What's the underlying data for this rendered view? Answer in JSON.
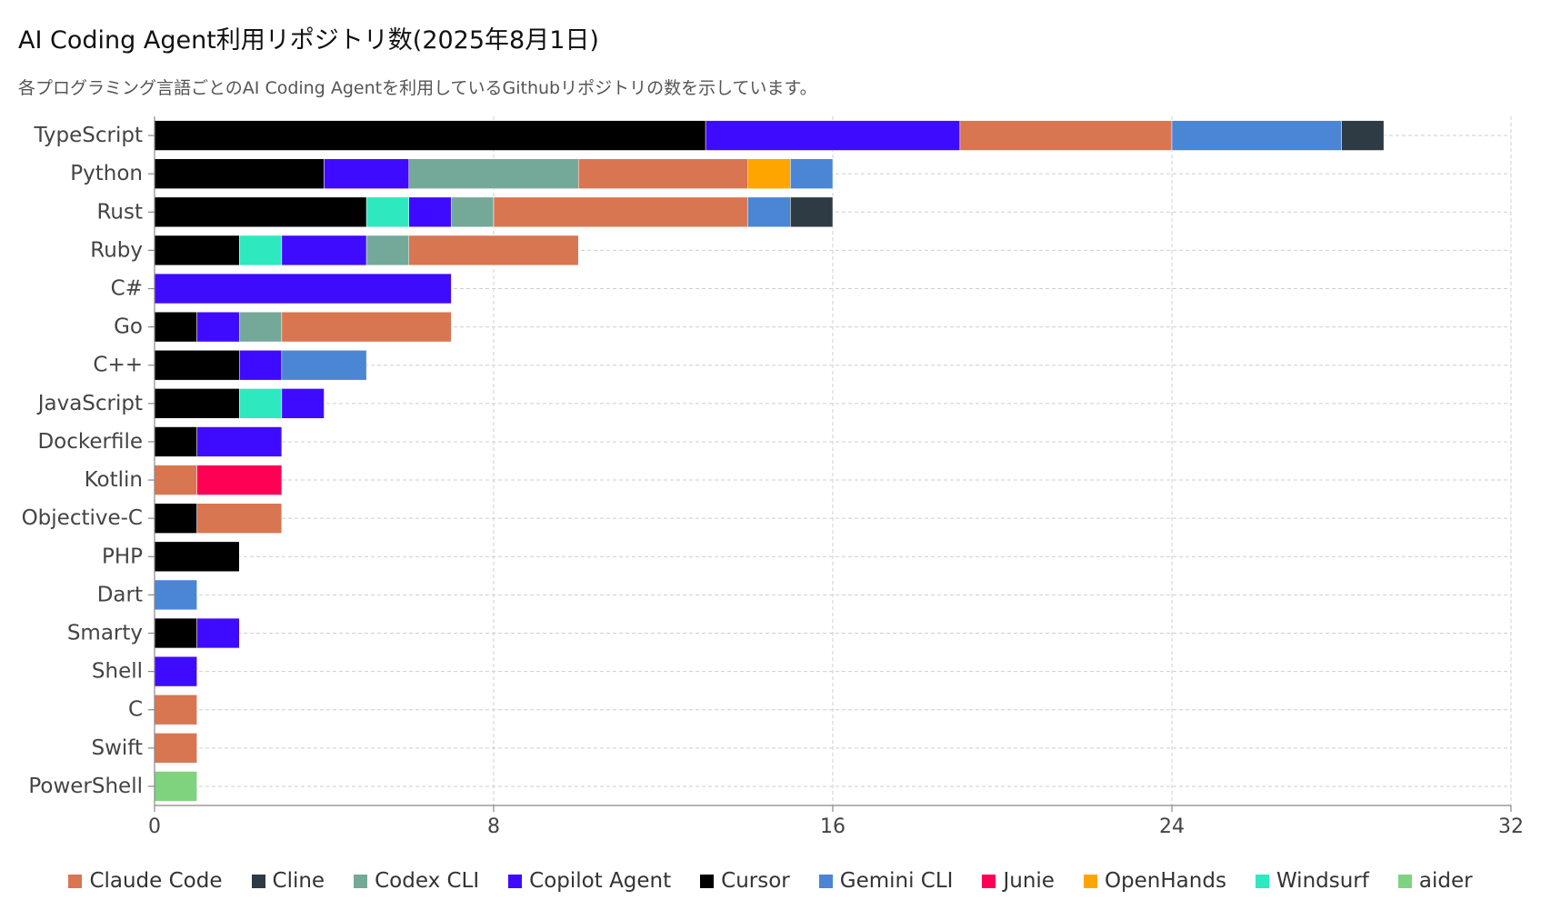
{
  "title": "AI Coding Agent利用リポジトリ数(2025年8月1日)",
  "subtitle": "各プログラミング言語ごとのAI Coding Agentを利用しているGithubリポジトリの数を示しています。",
  "colors": {
    "Claude Code": "#d97652",
    "Cline": "#2e3a44",
    "Codex CLI": "#74a99a",
    "Copilot Agent": "#3f0bff",
    "Cursor": "#000000",
    "Gemini CLI": "#4a86d4",
    "Junie": "#ff0055",
    "OpenHands": "#ffa500",
    "Windsurf": "#2ee8c0",
    "aider": "#7fd37f"
  },
  "chart_data": {
    "type": "bar",
    "orientation": "horizontal",
    "stacked": true,
    "xlim": [
      0,
      32
    ],
    "xticks": [
      0,
      8,
      16,
      24,
      32
    ],
    "grid": true,
    "legend_placement": "bottom",
    "categories": [
      "TypeScript",
      "Python",
      "Rust",
      "Ruby",
      "C#",
      "Go",
      "C++",
      "JavaScript",
      "Dockerfile",
      "Kotlin",
      "Objective-C",
      "PHP",
      "Dart",
      "Smarty",
      "Shell",
      "C",
      "Swift",
      "PowerShell"
    ],
    "series": [
      {
        "name": "Cursor",
        "values": [
          13,
          4,
          5,
          2,
          0,
          1,
          2,
          2,
          1,
          0,
          1,
          2,
          0,
          1,
          0,
          0,
          0,
          0
        ]
      },
      {
        "name": "Windsurf",
        "values": [
          0,
          0,
          1,
          1,
          0,
          0,
          0,
          1,
          0,
          0,
          0,
          0,
          0,
          0,
          0,
          0,
          0,
          0
        ]
      },
      {
        "name": "Copilot Agent",
        "values": [
          6,
          2,
          1,
          2,
          7,
          1,
          1,
          1,
          2,
          0,
          0,
          0,
          0,
          1,
          1,
          0,
          0,
          0
        ]
      },
      {
        "name": "Codex CLI",
        "values": [
          0,
          4,
          1,
          1,
          0,
          1,
          0,
          0,
          0,
          0,
          0,
          0,
          0,
          0,
          0,
          0,
          0,
          0
        ]
      },
      {
        "name": "Claude Code",
        "values": [
          5,
          4,
          6,
          4,
          0,
          4,
          0,
          0,
          0,
          1,
          2,
          0,
          0,
          0,
          0,
          1,
          1,
          0
        ]
      },
      {
        "name": "Junie",
        "values": [
          0,
          0,
          0,
          0,
          0,
          0,
          0,
          0,
          0,
          2,
          0,
          0,
          0,
          0,
          0,
          0,
          0,
          0
        ]
      },
      {
        "name": "OpenHands",
        "values": [
          0,
          1,
          0,
          0,
          0,
          0,
          0,
          0,
          0,
          0,
          0,
          0,
          0,
          0,
          0,
          0,
          0,
          0
        ]
      },
      {
        "name": "Gemini CLI",
        "values": [
          4,
          1,
          1,
          0,
          0,
          0,
          2,
          0,
          0,
          0,
          0,
          0,
          1,
          0,
          0,
          0,
          0,
          0
        ]
      },
      {
        "name": "Cline",
        "values": [
          1,
          0,
          1,
          0,
          0,
          0,
          0,
          0,
          0,
          0,
          0,
          0,
          0,
          0,
          0,
          0,
          0,
          0
        ]
      },
      {
        "name": "aider",
        "values": [
          0,
          0,
          0,
          0,
          0,
          0,
          0,
          0,
          0,
          0,
          0,
          0,
          0,
          0,
          0,
          0,
          0,
          1
        ]
      }
    ],
    "legend": [
      "Claude Code",
      "Cline",
      "Codex CLI",
      "Copilot Agent",
      "Cursor",
      "Gemini CLI",
      "Junie",
      "OpenHands",
      "Windsurf",
      "aider"
    ]
  }
}
